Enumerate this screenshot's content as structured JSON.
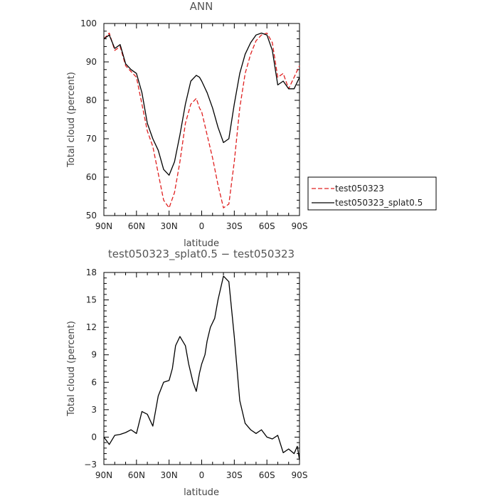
{
  "chart_data": [
    {
      "type": "line",
      "title": "ANN",
      "xlabel": "latitude",
      "ylabel": "Total cloud (percent)",
      "xlim": [
        90,
        -90
      ],
      "ylim": [
        50,
        100
      ],
      "xticks": [
        90,
        60,
        30,
        0,
        -30,
        -60,
        -90
      ],
      "xtick_labels": [
        "90N",
        "60N",
        "30N",
        "0",
        "30S",
        "60S",
        "90S"
      ],
      "yticks": [
        50,
        60,
        70,
        80,
        90,
        100
      ],
      "ytick_labels": [
        "50",
        "60",
        "70",
        "80",
        "90",
        "100"
      ],
      "legend": "right",
      "series": [
        {
          "name": "test050323",
          "color": "#e02020",
          "dash": "dashed",
          "x": [
            90,
            85,
            80,
            75,
            70,
            65,
            60,
            55,
            50,
            45,
            40,
            35,
            30,
            25,
            20,
            15,
            10,
            5,
            2,
            0,
            -5,
            -10,
            -15,
            -20,
            -25,
            -30,
            -35,
            -40,
            -45,
            -50,
            -55,
            -60,
            -65,
            -70,
            -75,
            -80,
            -85,
            -90
          ],
          "y": [
            96,
            97.5,
            93,
            94,
            89,
            87.5,
            86,
            79,
            72,
            68,
            61,
            54,
            52,
            56,
            64,
            74,
            79,
            80.5,
            78,
            77,
            71,
            65,
            58,
            52,
            53,
            64,
            78,
            87,
            92,
            95.5,
            97,
            97.5,
            95,
            86,
            87,
            83,
            86,
            89
          ]
        },
        {
          "name": "test050323_splat0.5",
          "color": "#000000",
          "dash": "solid",
          "x": [
            90,
            85,
            80,
            75,
            70,
            65,
            60,
            55,
            50,
            45,
            40,
            35,
            30,
            25,
            20,
            15,
            10,
            5,
            2,
            0,
            -5,
            -10,
            -15,
            -20,
            -25,
            -30,
            -35,
            -40,
            -45,
            -50,
            -55,
            -60,
            -65,
            -70,
            -75,
            -80,
            -85,
            -90
          ],
          "y": [
            96,
            97,
            93.5,
            94.5,
            89.5,
            88,
            87,
            82,
            74,
            70,
            67,
            62,
            60.5,
            64,
            71,
            79,
            85,
            86.5,
            86,
            85,
            82,
            78,
            73,
            69,
            70,
            79,
            87,
            92,
            95,
            97,
            97.5,
            97,
            93,
            84,
            85,
            83,
            83,
            86
          ]
        }
      ]
    },
    {
      "type": "line",
      "title": "test050323_splat0.5 − test050323",
      "xlabel": "latitude",
      "ylabel": "Total cloud (percent)",
      "xlim": [
        90,
        -90
      ],
      "ylim": [
        -3,
        18
      ],
      "xticks": [
        90,
        60,
        30,
        0,
        -30,
        -60,
        -90
      ],
      "xtick_labels": [
        "90N",
        "60N",
        "30N",
        "0",
        "30S",
        "60S",
        "90S"
      ],
      "yticks": [
        -3,
        0,
        3,
        6,
        9,
        12,
        15,
        18
      ],
      "ytick_labels": [
        "−3",
        "0",
        "3",
        "6",
        "9",
        "12",
        "15",
        "18"
      ],
      "series": [
        {
          "color": "#000000",
          "dash": "solid",
          "x": [
            90,
            85,
            80,
            75,
            70,
            65,
            60,
            55,
            50,
            45,
            40,
            35,
            30,
            27,
            24,
            20,
            15,
            12,
            8,
            5,
            2,
            0,
            -3,
            -5,
            -8,
            -12,
            -15,
            -20,
            -25,
            -30,
            -35,
            -40,
            -45,
            -50,
            -55,
            -60,
            -65,
            -70,
            -75,
            -80,
            -85,
            -88,
            -90
          ],
          "y": [
            0,
            -0.8,
            0.2,
            0.3,
            0.5,
            0.8,
            0.4,
            2.8,
            2.5,
            1.2,
            4.5,
            6.0,
            6.2,
            7.5,
            10.0,
            11.0,
            10.0,
            8.0,
            6.0,
            5.0,
            7.0,
            8.0,
            9.0,
            10.5,
            12.0,
            13.0,
            15.0,
            17.6,
            17.0,
            11.0,
            4.0,
            1.5,
            0.8,
            0.4,
            0.8,
            0.0,
            -0.2,
            0.2,
            -1.7,
            -1.3,
            -1.8,
            -1.0,
            -2.5
          ]
        }
      ]
    }
  ]
}
